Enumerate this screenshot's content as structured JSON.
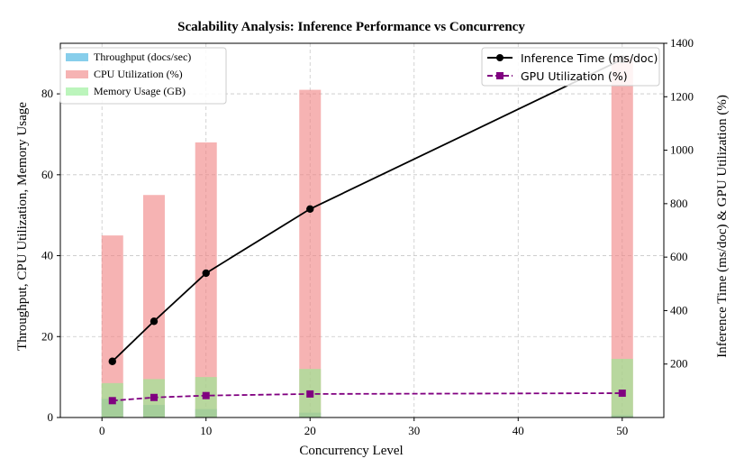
{
  "chart_data": {
    "type": "bar",
    "title": "Scalability Analysis: Inference Performance vs Concurrency",
    "xlabel": "Concurrency Level",
    "ylabel_left": "Throughput, CPU Utilization, Memory Usage",
    "ylabel_right": "Inference Time (ms/doc) & GPU Utilization (%)",
    "x": [
      1,
      5,
      10,
      20,
      50
    ],
    "xlim": [
      -4,
      54
    ],
    "xticks": [
      0,
      10,
      20,
      30,
      40,
      50
    ],
    "ylim_left": [
      0,
      92.5
    ],
    "yticks_left": [
      0,
      20,
      40,
      60,
      80
    ],
    "ylim_right": [
      0,
      1400
    ],
    "yticks_right": [
      200,
      400,
      600,
      800,
      1000,
      1200,
      1400
    ],
    "grid": true,
    "bar_series": [
      {
        "name": "Throughput (docs/sec)",
        "axis": "left",
        "values": [
          4.6,
          3.1,
          2.1,
          1.2,
          0.6
        ],
        "color": "#87ceeb"
      },
      {
        "name": "CPU Utilization (%)",
        "axis": "left",
        "values": [
          45,
          55,
          68,
          81,
          89
        ],
        "color": "#f08080"
      },
      {
        "name": "Memory Usage (GB)",
        "axis": "left",
        "values": [
          8.5,
          9.5,
          10,
          12,
          14.5
        ],
        "color": "#90ee90"
      }
    ],
    "line_series": [
      {
        "name": "Inference Time (ms/doc)",
        "axis": "right",
        "values": [
          210,
          360,
          540,
          780,
          1340
        ],
        "color": "#000000",
        "marker": "circle",
        "style": "solid"
      },
      {
        "name": "GPU Utilization (%)",
        "axis": "right",
        "values": [
          63,
          75,
          82,
          88,
          91
        ],
        "color": "#800080",
        "marker": "square",
        "style": "dashed"
      }
    ],
    "legend_left_position": "top-left",
    "legend_right_position": "top-right"
  }
}
